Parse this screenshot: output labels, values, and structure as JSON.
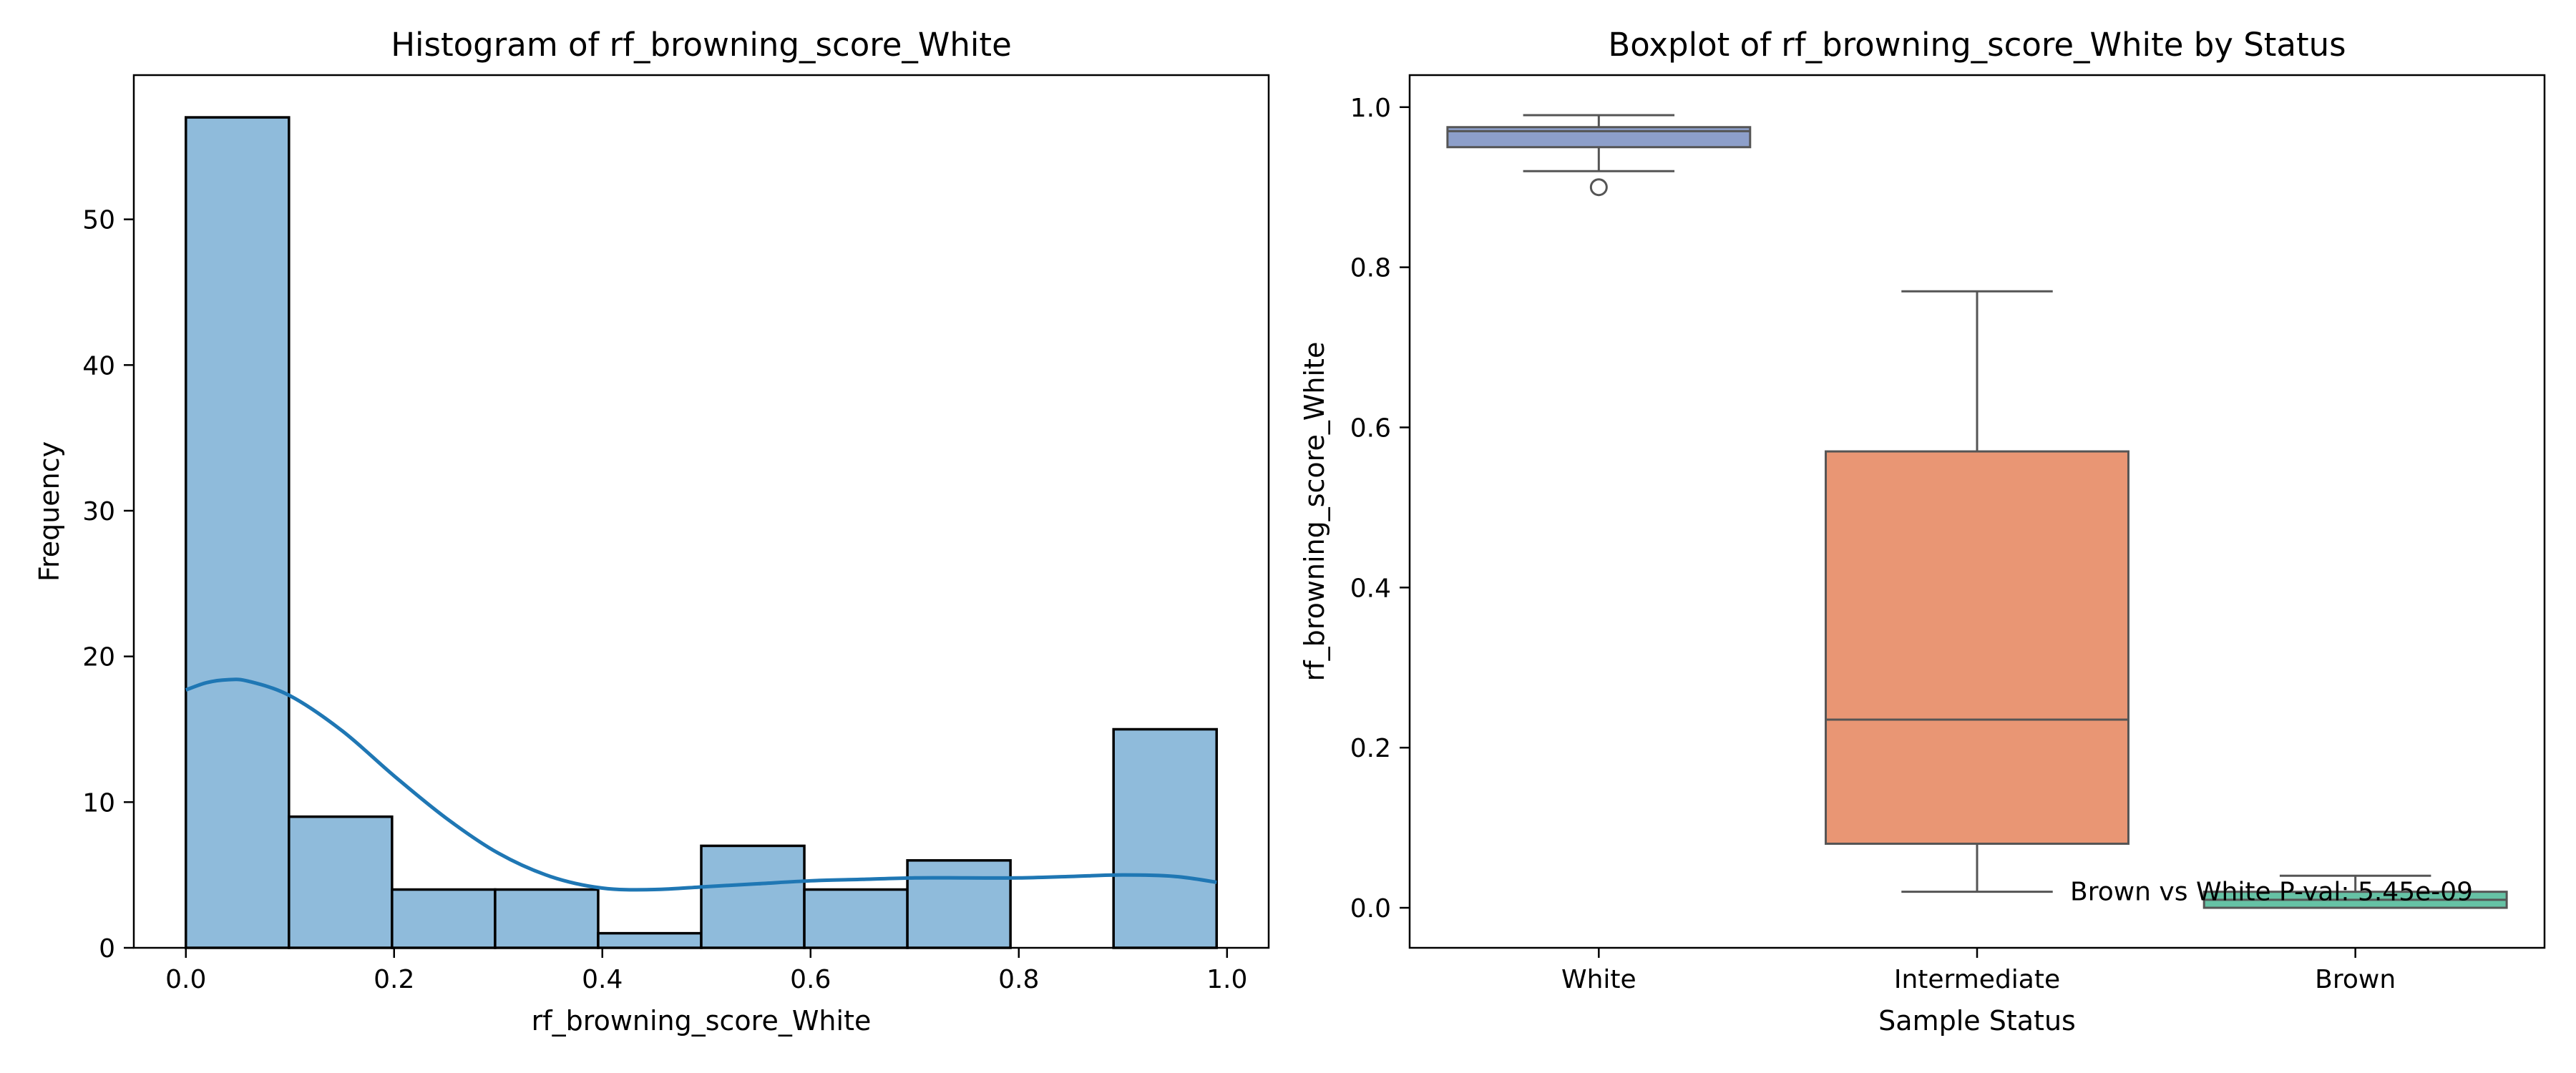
{
  "colors": {
    "hist_bar": "#8fbbdb",
    "kde_line": "#1f77b4",
    "box_white": "#8d9fca",
    "box_intermediate": "#e99674",
    "box_brown": "#66c2a5",
    "box_edge": "#555555"
  },
  "chart_data": [
    {
      "type": "bar",
      "title": "Histogram of rf_browning_score_White",
      "xlabel": "rf_browning_score_White",
      "ylabel": "Frequency",
      "xlim": [
        -0.05,
        1.04
      ],
      "ylim": [
        0,
        59.9
      ],
      "xticks": [
        0.0,
        0.2,
        0.4,
        0.6,
        0.8,
        1.0
      ],
      "xtick_labels": [
        "0.0",
        "0.2",
        "0.4",
        "0.6",
        "0.8",
        "1.0"
      ],
      "yticks": [
        0,
        10,
        20,
        30,
        40,
        50
      ],
      "ytick_labels": [
        "0",
        "10",
        "20",
        "30",
        "40",
        "50"
      ],
      "bins": [
        {
          "x0": 0.0,
          "x1": 0.099,
          "count": 57
        },
        {
          "x0": 0.099,
          "x1": 0.198,
          "count": 9
        },
        {
          "x0": 0.198,
          "x1": 0.297,
          "count": 4
        },
        {
          "x0": 0.297,
          "x1": 0.396,
          "count": 4
        },
        {
          "x0": 0.396,
          "x1": 0.495,
          "count": 1
        },
        {
          "x0": 0.495,
          "x1": 0.594,
          "count": 7
        },
        {
          "x0": 0.594,
          "x1": 0.693,
          "count": 4
        },
        {
          "x0": 0.693,
          "x1": 0.792,
          "count": 6
        },
        {
          "x0": 0.792,
          "x1": 0.891,
          "count": 0
        },
        {
          "x0": 0.891,
          "x1": 0.99,
          "count": 15
        }
      ],
      "kde": {
        "x": [
          0.0,
          0.02,
          0.04,
          0.06,
          0.1,
          0.15,
          0.2,
          0.25,
          0.3,
          0.35,
          0.4,
          0.45,
          0.5,
          0.55,
          0.6,
          0.65,
          0.7,
          0.75,
          0.8,
          0.85,
          0.9,
          0.95,
          0.99
        ],
        "y": [
          17.7,
          18.2,
          18.4,
          18.3,
          17.3,
          14.9,
          11.8,
          8.9,
          6.5,
          4.9,
          4.1,
          4.0,
          4.2,
          4.4,
          4.6,
          4.7,
          4.8,
          4.8,
          4.8,
          4.9,
          5.0,
          4.9,
          4.5
        ]
      },
      "grid": false
    },
    {
      "type": "box",
      "title": "Boxplot of rf_browning_score_White by Status",
      "xlabel": "Sample Status",
      "ylabel": "rf_browning_score_White",
      "ylim": [
        -0.05,
        1.04
      ],
      "yticks": [
        0.0,
        0.2,
        0.4,
        0.6,
        0.8,
        1.0
      ],
      "ytick_labels": [
        "0.0",
        "0.2",
        "0.4",
        "0.6",
        "0.8",
        "1.0"
      ],
      "categories": [
        "White",
        "Intermediate",
        "Brown"
      ],
      "boxes": [
        {
          "name": "White",
          "whisker_low": 0.92,
          "q1": 0.95,
          "median": 0.97,
          "q3": 0.975,
          "whisker_high": 0.99,
          "outliers": [
            0.9
          ]
        },
        {
          "name": "Intermediate",
          "whisker_low": 0.02,
          "q1": 0.08,
          "median": 0.235,
          "q3": 0.57,
          "whisker_high": 0.77,
          "outliers": []
        },
        {
          "name": "Brown",
          "whisker_low": 0.0,
          "q1": 0.0,
          "median": 0.01,
          "q3": 0.02,
          "whisker_high": 0.04,
          "outliers": []
        }
      ],
      "annotations": [
        {
          "text": "Brown vs White P-val: 5.45e-09",
          "x": "Intermediate",
          "y": 0.02
        }
      ],
      "grid": false
    }
  ]
}
